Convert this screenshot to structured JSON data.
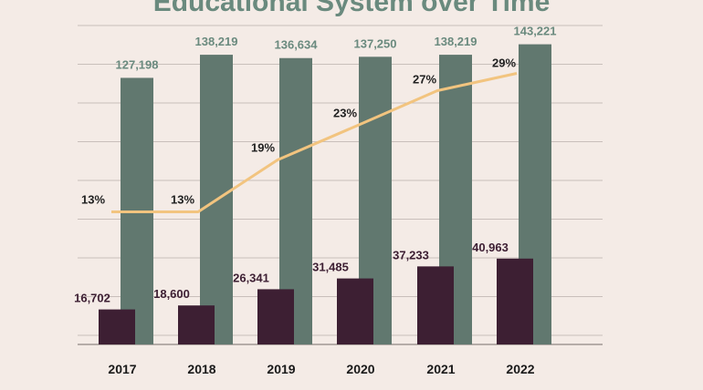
{
  "title": "Educational System over Time",
  "colors": {
    "background": "#f4ebe6",
    "total_bar": "#61786f",
    "sub_bar": "#3d1f33",
    "line": "#f2c47f",
    "grid": "#c9bfbb",
    "total_label": "#6a8a7e"
  },
  "chart_data": {
    "type": "bar",
    "categories": [
      "2017",
      "2018",
      "2019",
      "2020",
      "2021",
      "2022"
    ],
    "series": [
      {
        "values": [
          127198,
          138219,
          136634,
          137250,
          138219,
          143221
        ],
        "labels": [
          "127,198",
          "138,219",
          "136,634",
          "137,250",
          "138,219",
          "143,221"
        ]
      },
      {
        "values": [
          16702,
          18600,
          26341,
          31485,
          37233,
          40963
        ],
        "labels": [
          "16,702",
          "18,600",
          "26,341",
          "31,485",
          "37,233",
          "40,963"
        ]
      }
    ],
    "line_series": {
      "type": "line",
      "values": [
        13,
        13,
        19,
        23,
        27,
        29
      ],
      "labels": [
        "13%",
        "13%",
        "19%",
        "23%",
        "27%",
        "29%"
      ],
      "ylim": [
        0,
        45
      ]
    },
    "ylim": [
      0,
      160000
    ],
    "grid": true,
    "legend": "none"
  }
}
